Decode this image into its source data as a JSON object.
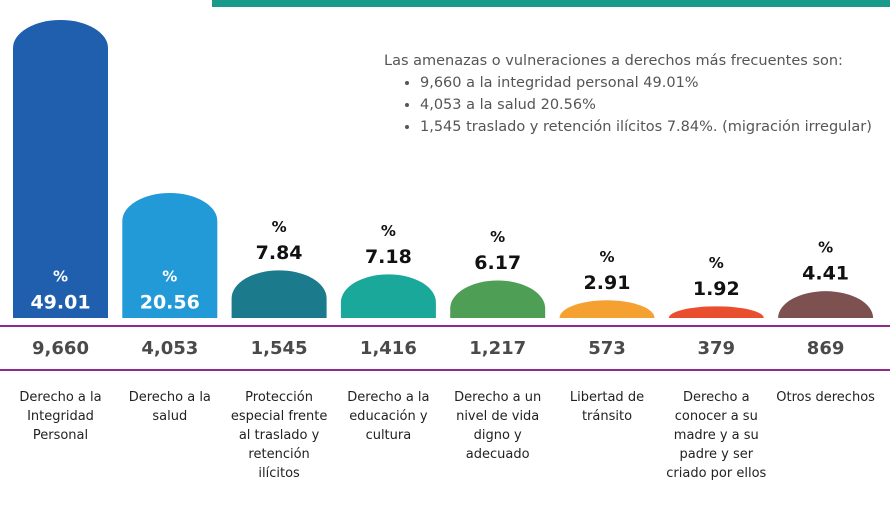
{
  "chart_data": {
    "type": "bar",
    "unit": "%",
    "categories": [
      "Derecho a la Integridad Personal",
      "Derecho a la salud",
      "Protección especial frente al traslado y retención ilícitos",
      "Derecho a la educación y cultura",
      "Derecho a un nivel de vida digno y adecuado",
      "Libertad de tránsito",
      "Derecho a conocer a su madre y a su padre y ser criado por ellos",
      "Otros derechos"
    ],
    "values": [
      49.01,
      20.56,
      7.84,
      7.18,
      6.17,
      2.91,
      1.92,
      4.41
    ],
    "colors": [
      "#1f5fad",
      "#229ad8",
      "#1b7a8c",
      "#1aa89a",
      "#4f9e56",
      "#f5a132",
      "#e94e2e",
      "#7d5150"
    ],
    "counts": [
      9660,
      4053,
      1545,
      1416,
      1217,
      573,
      379,
      869
    ],
    "counts_labels": [
      "9,660",
      "4,053",
      "1,545",
      "1,416",
      "1,217",
      "573",
      "379",
      "869"
    ],
    "ylim": [
      0,
      50
    ],
    "note": {
      "intro": "Las amenazas o vulneraciones a derechos más frecuentes son:",
      "items": [
        "9,660 a la integridad personal 49.01%",
        "4,053 a la salud 20.56%",
        "1,545 traslado y retención ilícitos 7.84%. (migración irregular)"
      ]
    }
  }
}
